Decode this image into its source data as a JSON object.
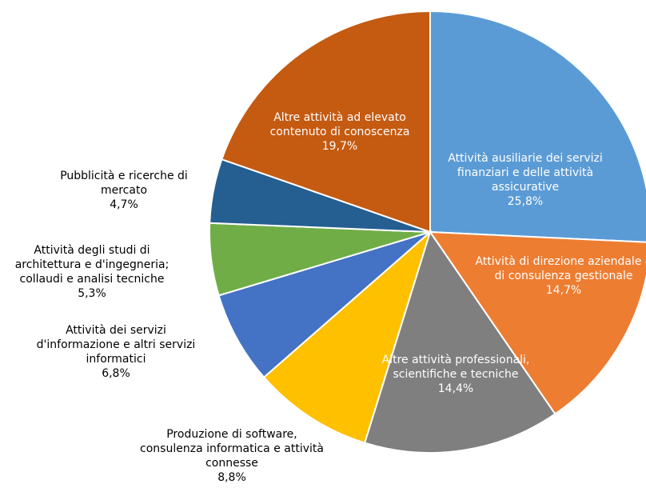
{
  "chart_data": {
    "type": "pie",
    "categories": [
      "Attività ausiliarie dei servizi finanziari e delle attività assicurative",
      "Attività di direzione aziendale e di consulenza gestionale",
      "Altre attività professionali, scientifiche e tecniche",
      "Produzione di software, consulenza informatica e attività connesse",
      "Attività dei servizi d'informazione e altri servizi informatici",
      "Attività degli studi di architettura e d'ingegneria; collaudi e analisi tecniche",
      "Pubblicità e ricerche di mercato",
      "Altre attività ad elevato contenuto di conoscenza"
    ],
    "values": [
      25.8,
      14.7,
      14.4,
      8.8,
      6.8,
      5.3,
      4.7,
      19.7
    ],
    "value_labels": [
      "25,8%",
      "14,7%",
      "14,4%",
      "8,8%",
      "6,8%",
      "5,3%",
      "4,7%",
      "19,7%"
    ],
    "colors": [
      "#5b9bd5",
      "#ed7d31",
      "#7f7f7f",
      "#ffc000",
      "#4472c4",
      "#70ad47",
      "#255e91",
      "#c55a11"
    ]
  }
}
